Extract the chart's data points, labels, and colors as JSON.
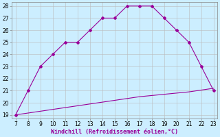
{
  "xlabel": "Windchill (Refroidissement éolien,°C)",
  "line1_x": [
    7,
    8,
    9,
    10,
    11,
    12,
    13,
    14,
    15,
    16,
    17,
    18,
    19,
    20,
    21,
    22,
    23
  ],
  "line1_y": [
    19,
    21,
    23,
    24,
    25,
    25,
    26,
    27,
    27,
    28,
    28,
    28,
    27,
    26,
    25,
    23,
    21
  ],
  "line2_x": [
    7,
    8,
    9,
    10,
    11,
    12,
    13,
    14,
    15,
    16,
    17,
    18,
    19,
    20,
    21,
    22,
    23
  ],
  "line2_y": [
    19.0,
    19.15,
    19.3,
    19.45,
    19.6,
    19.75,
    19.9,
    20.05,
    20.2,
    20.35,
    20.5,
    20.6,
    20.7,
    20.8,
    20.9,
    21.05,
    21.2
  ],
  "line_color": "#990099",
  "bg_color": "#cceeff",
  "grid_color": "#bbbbbb",
  "xlim": [
    7,
    23
  ],
  "ylim": [
    19,
    28
  ],
  "xticks": [
    7,
    8,
    9,
    10,
    11,
    12,
    13,
    14,
    15,
    16,
    17,
    18,
    19,
    20,
    21,
    22,
    23
  ],
  "yticks": [
    19,
    20,
    21,
    22,
    23,
    24,
    25,
    26,
    27,
    28
  ],
  "tick_fontsize": 5.5,
  "xlabel_fontsize": 6,
  "marker": "D",
  "marker_size": 2.0,
  "linewidth": 0.8
}
